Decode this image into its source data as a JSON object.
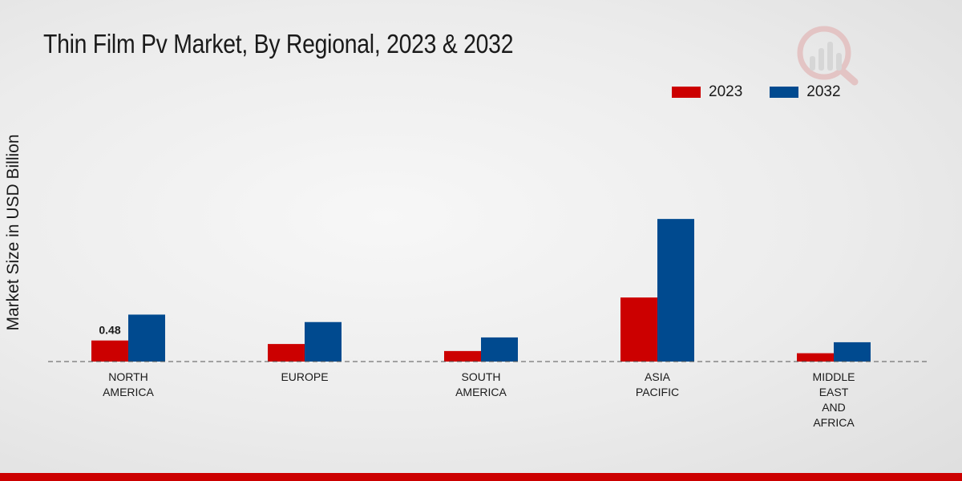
{
  "chart_data": {
    "type": "bar",
    "title": "Thin Film Pv Market, By Regional, 2023 & 2032",
    "xlabel": "",
    "ylabel": "Market Size in USD Billion",
    "categories": [
      [
        "NORTH",
        "AMERICA"
      ],
      [
        "EUROPE"
      ],
      [
        "SOUTH",
        "AMERICA"
      ],
      [
        "ASIA",
        "PACIFIC"
      ],
      [
        "MIDDLE",
        "EAST",
        "AND",
        "AFRICA"
      ]
    ],
    "series": [
      {
        "name": "2023",
        "color": "#cc0000",
        "values": [
          0.48,
          0.4,
          0.24,
          1.46,
          0.19
        ]
      },
      {
        "name": "2032",
        "color": "#004a8f",
        "values": [
          1.07,
          0.9,
          0.55,
          3.25,
          0.44
        ]
      }
    ],
    "data_labels": [
      {
        "series": 0,
        "index": 0,
        "text": "0.48"
      }
    ],
    "ylim": [
      0,
      5.5
    ],
    "legend_position": "top-right",
    "grid": false
  }
}
